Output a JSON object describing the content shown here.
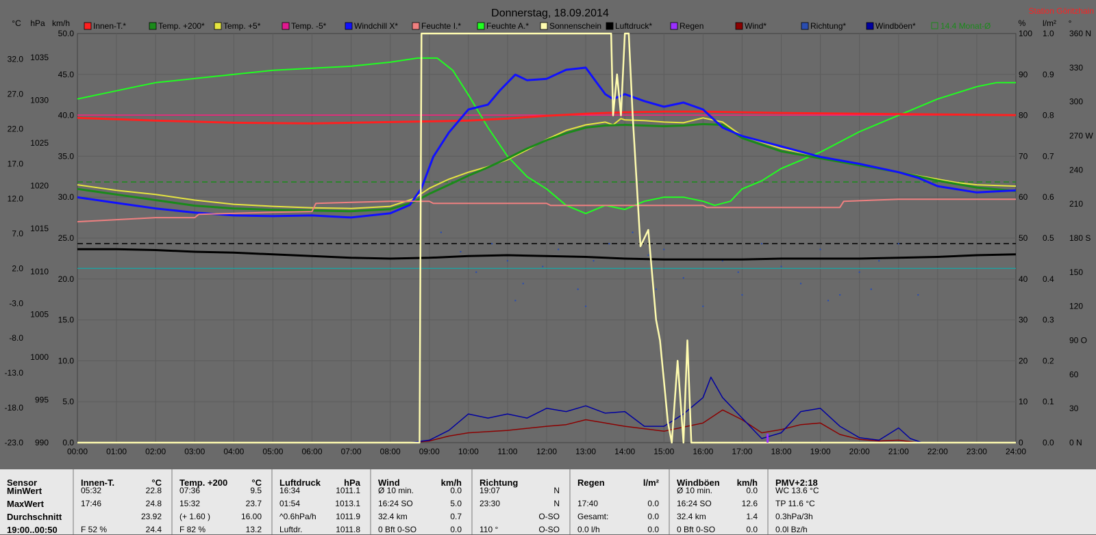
{
  "title": "Donnerstag, 18.09.2014",
  "station": "Station Göritzhain",
  "units": {
    "left": [
      "°C",
      "hPa",
      "km/h"
    ],
    "right": [
      "%",
      "l/m²",
      "°"
    ]
  },
  "legend": [
    {
      "label": "Innen-T.*",
      "color": "#ff2020"
    },
    {
      "label": "Temp. +200*",
      "color": "#1a8a1a"
    },
    {
      "label": "Temp. +5*",
      "color": "#e6e640"
    },
    {
      "label": "Temp. -5*",
      "color": "#e01890"
    },
    {
      "label": "Windchill X*",
      "color": "#1010ff"
    },
    {
      "label": "Feuchte I.*",
      "color": "#f08080"
    },
    {
      "label": "Feuchte A.*",
      "color": "#20ff20"
    },
    {
      "label": "Sonnenschein",
      "color": "#fffcb0"
    },
    {
      "label": "Luftdruck*",
      "color": "#000000"
    },
    {
      "label": "Regen",
      "color": "#9b30ff"
    },
    {
      "label": "Wind*",
      "color": "#8b0000"
    },
    {
      "label": "Richtung*",
      "color": "#2a4db0"
    },
    {
      "label": "Windböen*",
      "color": "#0000a0"
    },
    {
      "label": "14.4 Monat-Ø",
      "color": "#1a8a1a"
    }
  ],
  "chart_data": {
    "type": "line",
    "x_ticks": [
      "00:00",
      "01:00",
      "02:00",
      "03:00",
      "04:00",
      "05:00",
      "06:00",
      "07:00",
      "08:00",
      "09:00",
      "10:00",
      "11:00",
      "12:00",
      "13:00",
      "14:00",
      "15:00",
      "16:00",
      "17:00",
      "18:00",
      "19:00",
      "20:00",
      "21:00",
      "22:00",
      "23:00",
      "24:00"
    ],
    "axes": {
      "temp_c": {
        "ticks": [
          "32.0",
          "27.0",
          "22.0",
          "17.0",
          "12.0",
          "7.0",
          "2.0",
          "-3.0",
          "-8.0",
          "-13.0",
          "-18.0",
          "-23.0"
        ],
        "range": [
          -23,
          35.7
        ]
      },
      "hpa": {
        "ticks": [
          "1035",
          "1030",
          "1025",
          "1020",
          "1015",
          "1010",
          "1005",
          "1000",
          "995",
          "990"
        ],
        "range": [
          990,
          1037.8
        ]
      },
      "kmh": {
        "ticks": [
          "50.0",
          "45.0",
          "40.0",
          "35.0",
          "30.0",
          "25.0",
          "20.0",
          "15.0",
          "10.0",
          "5.0",
          "0.0"
        ],
        "range": [
          0,
          50
        ]
      },
      "percent": {
        "ticks": [
          "100",
          "90",
          "80",
          "70",
          "60",
          "50",
          "40",
          "30",
          "20",
          "10",
          "0"
        ],
        "range": [
          0,
          100
        ]
      },
      "rain_lm2": {
        "ticks": [
          "1.0",
          "0.9",
          "0.8",
          "0.7",
          "0.6",
          "0.5",
          "0.4",
          "0.3",
          "0.2",
          "0.1",
          "0.0"
        ],
        "range": [
          0,
          1
        ]
      },
      "direction_deg": {
        "ticks": [
          "360 N",
          "330",
          "300",
          "270 W",
          "240",
          "210",
          "180 S",
          "150",
          "120",
          "90 O",
          "60",
          "30",
          "0 N"
        ],
        "range": [
          0,
          360
        ]
      }
    },
    "reference_lines": [
      {
        "axis": "temp_c",
        "value": 24.0,
        "color": "#ff2080"
      },
      {
        "axis": "temp_c",
        "value": 14.4,
        "color": "#1a8a1a",
        "dashed": true
      },
      {
        "axis": "hpa",
        "value": 1013.25,
        "color": "#000000",
        "dashed": true
      },
      {
        "axis": "temp_c",
        "value": 2.0,
        "color": "#20a0a0"
      }
    ],
    "series": [
      {
        "name": "Feuchte A.*",
        "axis": "percent",
        "color": "#20ff20",
        "width": 2,
        "x": [
          0,
          0.5,
          1,
          1.5,
          2,
          3,
          4,
          5,
          6,
          7,
          8,
          8.7,
          9.2,
          9.6,
          10,
          10.5,
          11,
          11.5,
          12,
          12.5,
          13,
          13.5,
          14,
          14.5,
          15,
          15.5,
          16,
          16.3,
          16.7,
          17,
          17.5,
          18,
          19,
          20,
          21,
          22,
          23,
          23.5,
          24
        ],
        "y": [
          84,
          85,
          86,
          87,
          88,
          89,
          90,
          91,
          91.5,
          92,
          93,
          94,
          94,
          91,
          85,
          77,
          70,
          65,
          62,
          58,
          56,
          58,
          57,
          59,
          60,
          60,
          59,
          58,
          59,
          62,
          64,
          67,
          71,
          76,
          80,
          84,
          87,
          88,
          88
        ]
      },
      {
        "name": "Innen-T.*",
        "axis": "temp_c",
        "color": "#ff2020",
        "width": 3,
        "x": [
          0,
          2,
          4,
          6,
          8,
          9,
          10,
          11,
          12,
          13,
          14,
          15,
          16,
          17,
          18,
          20,
          22,
          24
        ],
        "y": [
          23.6,
          23.2,
          22.9,
          22.8,
          23.0,
          23.1,
          23.2,
          23.5,
          23.9,
          24.2,
          24.4,
          24.5,
          24.5,
          24.4,
          24.3,
          24.2,
          24.1,
          24.0
        ]
      },
      {
        "name": "Temp. +5*",
        "axis": "temp_c",
        "color": "#e6e640",
        "width": 2,
        "x": [
          0,
          1,
          2,
          3,
          4,
          5,
          6,
          7,
          8,
          8.6,
          9,
          9.5,
          10,
          10.5,
          11,
          11.5,
          12,
          12.5,
          13,
          13.5,
          13.7,
          13.9,
          14,
          14.5,
          15,
          15.5,
          16,
          16.5,
          17,
          18,
          19,
          20,
          21,
          22,
          22.5,
          23,
          24
        ],
        "y": [
          14.0,
          13.2,
          12.6,
          11.8,
          11.2,
          10.9,
          10.7,
          10.6,
          10.9,
          12.0,
          13.5,
          14.8,
          15.8,
          16.6,
          17.6,
          19.0,
          20.5,
          21.8,
          22.6,
          23.0,
          22.6,
          23.5,
          23.3,
          23.2,
          23.0,
          22.9,
          23.6,
          23.0,
          21.0,
          19.2,
          18.0,
          17.0,
          15.8,
          14.8,
          14.3,
          14.0,
          13.8
        ]
      },
      {
        "name": "Temp. +200*",
        "axis": "temp_c",
        "color": "#1a8a1a",
        "width": 3,
        "x": [
          0,
          1,
          2,
          3,
          4,
          5,
          6,
          7,
          8,
          8.6,
          9,
          9.5,
          10,
          10.5,
          11,
          11.5,
          12,
          12.5,
          13,
          13.5,
          14,
          14.5,
          15,
          15.5,
          16,
          16.5,
          17,
          18,
          19,
          20,
          21,
          22,
          23,
          24
        ],
        "y": [
          13.4,
          12.6,
          11.8,
          11.0,
          10.6,
          10.4,
          10.3,
          10.2,
          10.5,
          11.5,
          12.7,
          14.0,
          15.3,
          16.5,
          17.8,
          19.2,
          20.4,
          21.4,
          22.2,
          22.5,
          22.6,
          22.5,
          22.4,
          22.5,
          22.7,
          22.6,
          20.7,
          18.8,
          17.8,
          16.8,
          15.8,
          14.6,
          13.6,
          13.1
        ]
      },
      {
        "name": "Windchill X*",
        "axis": "temp_c",
        "color": "#1010ff",
        "width": 3,
        "x": [
          0,
          1,
          2,
          3,
          4,
          5,
          6,
          7,
          8,
          8.5,
          8.8,
          9.1,
          9.5,
          10,
          10.5,
          10.8,
          11.2,
          11.5,
          12,
          12.5,
          13,
          13.3,
          13.5,
          13.7,
          14,
          14.5,
          15,
          15.5,
          16,
          16.5,
          17,
          18,
          19,
          20,
          21,
          21.5,
          22,
          23,
          24
        ],
        "y": [
          12.2,
          11.4,
          10.6,
          10.0,
          9.6,
          9.5,
          9.6,
          9.3,
          9.9,
          11.1,
          13.5,
          18.0,
          21.5,
          24.8,
          25.5,
          27.5,
          29.8,
          29.0,
          29.2,
          30.5,
          30.8,
          28.5,
          27.0,
          26.3,
          27.0,
          26.0,
          25.2,
          25.8,
          24.8,
          22.2,
          21.0,
          19.5,
          18.0,
          17.0,
          15.8,
          15.0,
          13.8,
          12.9,
          13.2
        ]
      },
      {
        "name": "Feuchte I.*",
        "axis": "percent",
        "color": "#f08080",
        "width": 2,
        "x": [
          0,
          1,
          2,
          3,
          3.1,
          5,
          6,
          6.1,
          8,
          9,
          9.1,
          11,
          12,
          12.1,
          15,
          16,
          16.1,
          18,
          19.5,
          19.6,
          21,
          22,
          24
        ],
        "y": [
          54,
          54.5,
          55,
          55,
          55.8,
          56.3,
          56.5,
          58.5,
          59,
          59,
          58.5,
          58.5,
          58.5,
          58,
          58,
          58,
          57.5,
          57.5,
          57.5,
          59,
          59.5,
          59.5,
          59.5
        ]
      },
      {
        "name": "Luftdruck*",
        "axis": "hpa",
        "color": "#000000",
        "width": 3,
        "x": [
          0,
          1,
          2,
          3,
          4,
          5,
          6,
          7,
          8,
          9,
          10,
          11,
          12,
          13,
          14,
          15,
          16,
          17,
          18,
          19,
          20,
          21,
          22,
          23,
          24
        ],
        "y": [
          1012.6,
          1012.6,
          1012.5,
          1012.3,
          1012.2,
          1012.0,
          1011.8,
          1011.6,
          1011.5,
          1011.6,
          1011.8,
          1011.9,
          1011.8,
          1011.7,
          1011.5,
          1011.4,
          1011.4,
          1011.4,
          1011.5,
          1011.5,
          1011.5,
          1011.6,
          1011.7,
          1011.9,
          1012.0
        ]
      },
      {
        "name": "Wind*",
        "axis": "kmh",
        "color": "#8b0000",
        "width": 1.5,
        "x": [
          0,
          8.5,
          9,
          9.5,
          10,
          11,
          12,
          12.5,
          13,
          13.5,
          14,
          15,
          16,
          16.5,
          17,
          17.5,
          18,
          18.5,
          19,
          19.5,
          20,
          20.5,
          21,
          21.5,
          24
        ],
        "y": [
          0,
          0,
          0.2,
          0.8,
          1.2,
          1.5,
          2.0,
          2.2,
          2.8,
          2.4,
          2.0,
          1.4,
          2.4,
          4.0,
          2.8,
          1.2,
          1.6,
          2.2,
          2.4,
          1.0,
          0.4,
          0.2,
          0.3,
          0,
          0
        ]
      },
      {
        "name": "Windböen*",
        "axis": "kmh",
        "color": "#0000a0",
        "width": 1.5,
        "x": [
          0,
          8.5,
          9,
          9.5,
          10,
          10.5,
          11,
          11.5,
          12,
          12.5,
          13,
          13.5,
          14,
          14.5,
          15,
          15.5,
          16,
          16.2,
          16.5,
          17,
          17.5,
          18,
          18.5,
          19,
          19.5,
          20,
          20.5,
          21,
          21.3,
          21.6,
          24
        ],
        "y": [
          0,
          0,
          0.3,
          1.5,
          3.5,
          3.0,
          3.5,
          3.0,
          4.2,
          3.8,
          4.5,
          3.6,
          3.8,
          2.0,
          2.0,
          3.5,
          5.5,
          8.0,
          5.5,
          3.0,
          0.5,
          1.2,
          3.8,
          4.2,
          2.0,
          0.6,
          0.3,
          1.8,
          0.5,
          0,
          0
        ]
      },
      {
        "name": "Sonnenschein",
        "axis": "percent",
        "color": "#fffcb0",
        "width": 2.5,
        "x": [
          0,
          8.75,
          8.8,
          13.65,
          13.7,
          13.8,
          13.9,
          14.0,
          14.1,
          14.2,
          14.4,
          14.6,
          14.8,
          14.9,
          15.0,
          15.1,
          15.2,
          15.35,
          15.5,
          15.6,
          15.7,
          15.8,
          24
        ],
        "y": [
          0,
          0,
          100,
          100,
          80,
          90,
          80,
          100,
          100,
          80,
          48,
          52,
          30,
          25,
          15,
          5,
          0,
          20,
          0,
          25,
          0,
          0,
          0
        ]
      }
    ],
    "rain": [
      {
        "x": 17.65,
        "y": 0.02
      }
    ],
    "direction_points": [
      [
        9.3,
        185
      ],
      [
        9.8,
        168
      ],
      [
        10.2,
        150
      ],
      [
        10.6,
        175
      ],
      [
        11.0,
        160
      ],
      [
        11.4,
        140
      ],
      [
        11.9,
        155
      ],
      [
        12.3,
        170
      ],
      [
        12.8,
        135
      ],
      [
        13.2,
        160
      ],
      [
        13.6,
        175
      ],
      [
        14.2,
        185
      ],
      [
        14.6,
        165
      ],
      [
        15.0,
        170
      ],
      [
        15.5,
        145
      ],
      [
        16.0,
        120
      ],
      [
        16.5,
        160
      ],
      [
        17.0,
        130
      ],
      [
        17.5,
        175
      ],
      [
        18.0,
        155
      ],
      [
        18.5,
        140
      ],
      [
        19.0,
        170
      ],
      [
        19.5,
        130
      ],
      [
        20.0,
        150
      ],
      [
        20.5,
        160
      ],
      [
        21.0,
        175
      ],
      [
        21.5,
        130
      ],
      [
        11.2,
        125
      ],
      [
        13.0,
        120
      ],
      [
        14.8,
        135
      ],
      [
        16.9,
        150
      ],
      [
        19.2,
        125
      ],
      [
        20.3,
        135
      ]
    ]
  },
  "stats": {
    "time_left_partial": "19:00..00:50",
    "columns": [
      {
        "header": "Sensor",
        "unit": "",
        "rows": [
          "MinWert",
          "MaxWert",
          "Durchschnitt"
        ],
        "bold_rows": true
      },
      {
        "header": "Innen-T.",
        "unit": "°C",
        "rows": [
          [
            "05:32",
            "22.8"
          ],
          [
            "17:46",
            "24.8"
          ],
          [
            "",
            "23.92"
          ]
        ],
        "extra": [
          "F 52 %",
          "24.4"
        ]
      },
      {
        "header": "Temp. +200",
        "unit": "°C",
        "rows": [
          [
            "07:36",
            "9.5"
          ],
          [
            "15:32",
            "23.7"
          ],
          [
            "(+ 1.60 )",
            "16.00"
          ]
        ],
        "extra": [
          "F 82 %",
          "13.2"
        ]
      },
      {
        "header": "Luftdruck",
        "unit": "hPa",
        "rows": [
          [
            "16:34",
            "1011.1"
          ],
          [
            "01:54",
            "1013.1"
          ],
          [
            "^0.6hPa/h",
            "1011.9"
          ]
        ],
        "extra": [
          "Luftdr.",
          "1011.8"
        ]
      },
      {
        "header": "Wind",
        "unit": "km/h",
        "rows": [
          [
            "Ø 10 min.",
            "0.0"
          ],
          [
            "16:24 SO",
            "5.0"
          ],
          [
            "32.4 km",
            "0.7"
          ]
        ],
        "extra": [
          "0 Bft 0-SO",
          "0.0"
        ]
      },
      {
        "header": "Richtung",
        "unit": "",
        "rows": [
          [
            "19:07",
            "N"
          ],
          [
            "23:30",
            "N"
          ],
          [
            "",
            "O-SO"
          ]
        ],
        "extra": [
          "110 °",
          "O-SO"
        ]
      },
      {
        "header": "Regen",
        "unit": "l/m²",
        "rows": [
          [
            "",
            ""
          ],
          [
            "17:40",
            "0.0"
          ],
          [
            "Gesamt:",
            "0.0"
          ]
        ],
        "extra": [
          "0.0 l/h",
          "0.0"
        ]
      },
      {
        "header": "Windböen",
        "unit": "km/h",
        "rows": [
          [
            "Ø 10 min.",
            "0.0"
          ],
          [
            "16:24 SO",
            "12.6"
          ],
          [
            "32.4 km",
            "1.4"
          ]
        ],
        "extra": [
          "0 Bft 0-SO",
          "0.0"
        ]
      },
      {
        "header": "PMV+2:18",
        "unit": "",
        "rows": [
          [
            "WC 13.6 °C",
            ""
          ],
          [
            "TP 11.6 °C",
            ""
          ],
          [
            "0.3hPa/3h",
            ""
          ]
        ],
        "extra": [
          "0.0l Bz/h",
          ""
        ]
      }
    ]
  }
}
